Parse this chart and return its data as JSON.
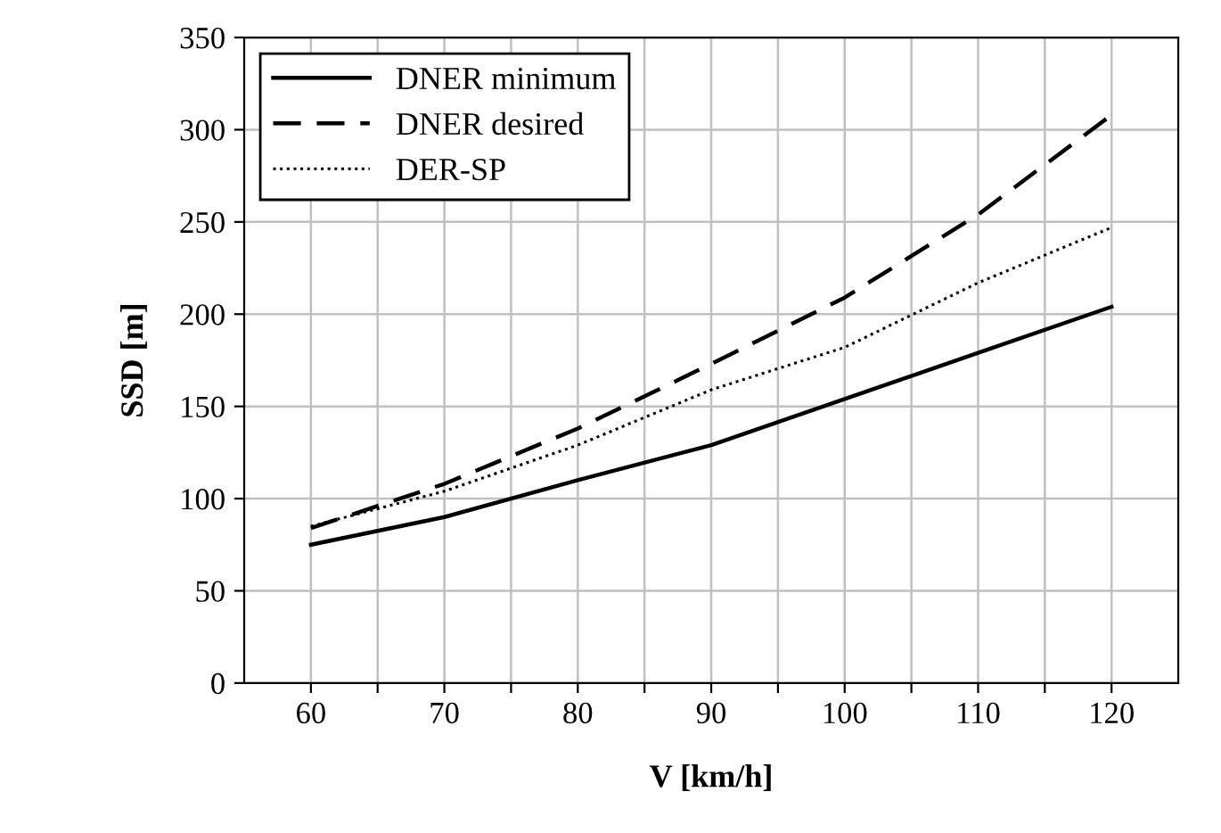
{
  "chart_data": {
    "type": "line",
    "xlabel": "V [km/h]",
    "ylabel": "SSD [m]",
    "x": [
      60,
      70,
      80,
      90,
      100,
      110,
      120
    ],
    "series": [
      {
        "name": "DNER minimum",
        "color": "#000000",
        "line_style": "solid",
        "values": [
          75,
          90,
          110,
          129,
          154,
          179,
          204
        ]
      },
      {
        "name": "DNER desired",
        "color": "#000000",
        "line_style": "dashed",
        "values": [
          84,
          108,
          138,
          173,
          209,
          254,
          308
        ]
      },
      {
        "name": "DER-SP",
        "color": "#000000",
        "line_style": "dotted",
        "values": [
          85,
          104,
          129,
          159,
          182,
          217,
          247
        ]
      }
    ],
    "xlim": [
      55,
      125
    ],
    "xticks": [
      60,
      {
        "value": 65,
        "label": null
      },
      70,
      {
        "value": 75,
        "label": null
      },
      80,
      {
        "value": 85,
        "label": null
      },
      90,
      {
        "value": 95,
        "label": null
      },
      100,
      {
        "value": 105,
        "label": null
      },
      110,
      {
        "value": 115,
        "label": null
      },
      120
    ],
    "ylim": [
      0,
      350
    ],
    "yticks": [
      0,
      50,
      100,
      150,
      200,
      250,
      300,
      350
    ],
    "grid": true,
    "legend": "top left",
    "marker": "none"
  }
}
